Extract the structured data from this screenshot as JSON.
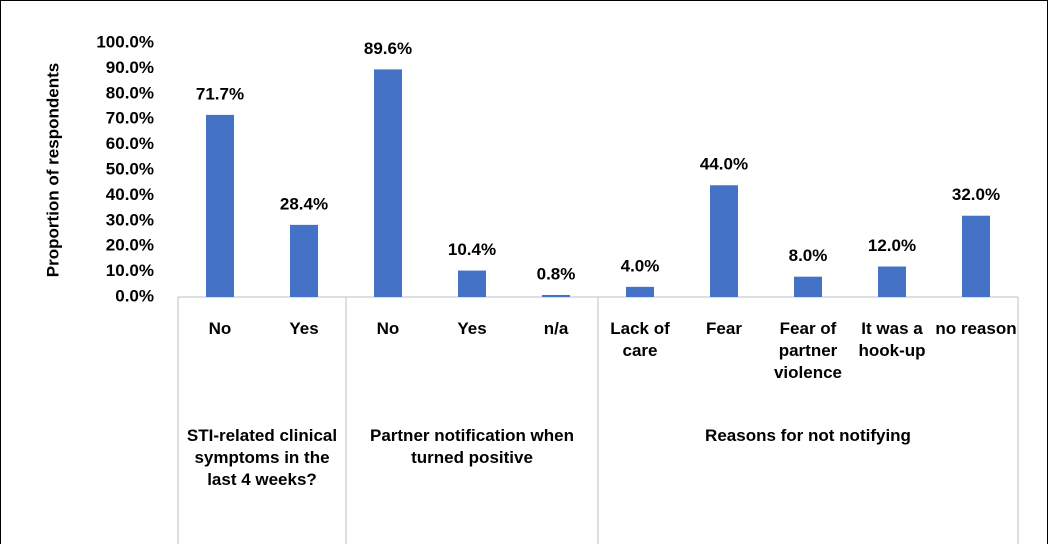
{
  "chart_data": {
    "type": "bar",
    "y_label": "Proportion of respondents",
    "categories": [
      "No",
      "Yes",
      "No",
      "Yes",
      "n/a",
      "Lack of care",
      "Fear",
      "Fear of partner violence",
      "It was a hook-up",
      "no reason"
    ],
    "values": [
      71.7,
      28.4,
      89.6,
      10.4,
      0.8,
      4.0,
      44.0,
      8.0,
      12.0,
      32.0
    ],
    "value_labels": [
      "71.7%",
      "28.4%",
      "89.6%",
      "10.4%",
      "0.8%",
      "4.0%",
      "44.0%",
      "8.0%",
      "12.0%",
      "32.0%"
    ],
    "groups": [
      {
        "name": "STI-related clinical symptoms in the last 4 weeks?",
        "size": 2
      },
      {
        "name": "Partner notification when turned positive",
        "size": 3
      },
      {
        "name": "Reasons for not notifying",
        "size": 5
      }
    ],
    "color": "#4472c4",
    "ylim": [
      0,
      100
    ],
    "yticks": [
      {
        "value": 0,
        "label": "0.0%"
      },
      {
        "value": 10,
        "label": "10.0%"
      },
      {
        "value": 20,
        "label": "20.0%"
      },
      {
        "value": 30,
        "label": "30.0%"
      },
      {
        "value": 40,
        "label": "40.0%"
      },
      {
        "value": 50,
        "label": "50.0%"
      },
      {
        "value": 60,
        "label": "60.0%"
      },
      {
        "value": 70,
        "label": "70.0%"
      },
      {
        "value": 80,
        "label": "80.0%"
      },
      {
        "value": 90,
        "label": "90.0%"
      },
      {
        "value": 100,
        "label": "100.0%"
      }
    ],
    "grid": false
  }
}
